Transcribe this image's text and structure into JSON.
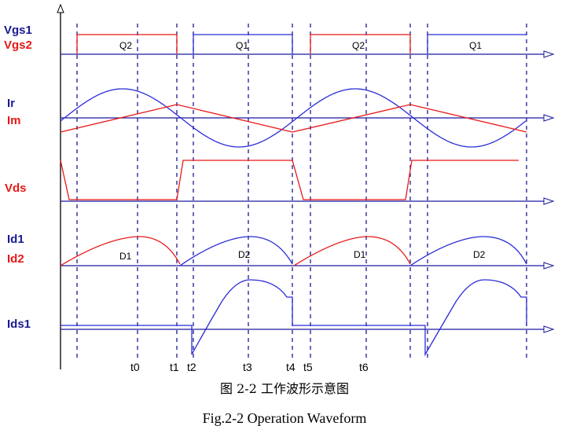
{
  "figure": {
    "signals": {
      "vgs1": "Vgs1",
      "vgs2": "Vgs2",
      "ir": "Ir",
      "im": "Im",
      "vds": "Vds",
      "id1": "Id1",
      "id2": "Id2",
      "ids1": "Ids1"
    },
    "gate_labels": [
      "Q2",
      "Q1",
      "Q2",
      "Q1"
    ],
    "diode_labels": [
      "D1",
      "D2",
      "D1",
      "D2"
    ],
    "time_labels": [
      "t0",
      "t1",
      "t2",
      "t3",
      "t4",
      "t5",
      "t6"
    ],
    "colors": {
      "blue": "#2a2ad8",
      "red": "#e81818",
      "axis": "#1a1aa0",
      "black": "#000000"
    }
  },
  "caption": {
    "chinese": "图 2-2  工作波形示意图",
    "english": "Fig.2-2 Operation Waveform"
  }
}
